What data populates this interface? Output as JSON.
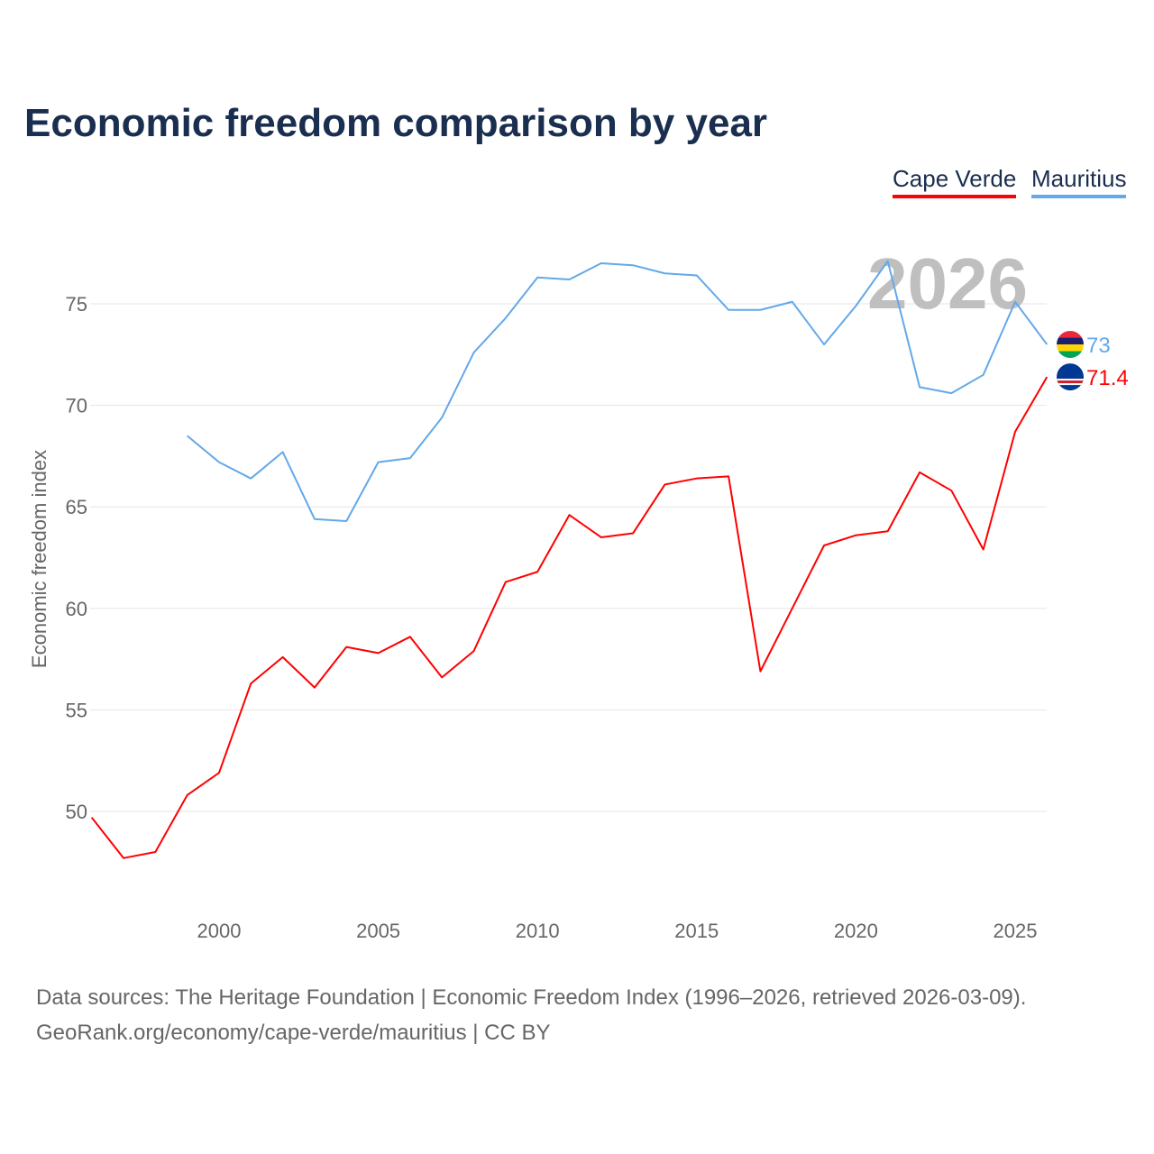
{
  "chart_data": {
    "type": "line",
    "title": "Economic freedom comparison by year",
    "xlabel": "",
    "ylabel": "Economic freedom index",
    "xlim": [
      1996,
      2026
    ],
    "ylim": [
      45,
      80
    ],
    "x_ticks": [
      "2000",
      "2005",
      "2010",
      "2015",
      "2020",
      "2025"
    ],
    "y_ticks": [
      "50",
      "55",
      "60",
      "65",
      "70",
      "75"
    ],
    "grid": true,
    "legend_placement": "top-right",
    "year_watermark": "2026",
    "series": [
      {
        "name": "Cape Verde",
        "color": "#ff0000",
        "end_label": "71.4",
        "flag": "cape-verde",
        "x": [
          1996,
          1997,
          1998,
          1999,
          2000,
          2001,
          2002,
          2003,
          2004,
          2005,
          2006,
          2007,
          2008,
          2009,
          2010,
          2011,
          2012,
          2013,
          2014,
          2015,
          2016,
          2017,
          2018,
          2019,
          2020,
          2021,
          2022,
          2023,
          2024,
          2025,
          2026
        ],
        "values": [
          49.7,
          47.7,
          48.0,
          50.8,
          51.9,
          56.3,
          57.6,
          56.1,
          58.1,
          57.8,
          58.6,
          56.6,
          57.9,
          61.3,
          61.8,
          64.6,
          63.5,
          63.7,
          66.1,
          66.4,
          66.5,
          56.9,
          60.0,
          63.1,
          63.6,
          63.8,
          66.7,
          65.8,
          62.9,
          68.7,
          71.4
        ]
      },
      {
        "name": "Mauritius",
        "color": "#63a8ea",
        "end_label": "73",
        "flag": "mauritius",
        "x": [
          1999,
          2000,
          2001,
          2002,
          2003,
          2004,
          2005,
          2006,
          2007,
          2008,
          2009,
          2010,
          2011,
          2012,
          2013,
          2014,
          2015,
          2016,
          2017,
          2018,
          2019,
          2020,
          2021,
          2022,
          2023,
          2024,
          2025,
          2026
        ],
        "values": [
          68.5,
          67.2,
          66.4,
          67.7,
          64.4,
          64.3,
          67.2,
          67.4,
          69.4,
          72.6,
          74.3,
          76.3,
          76.2,
          77.0,
          76.9,
          76.5,
          76.4,
          74.7,
          74.7,
          75.1,
          73.0,
          74.9,
          77.1,
          70.9,
          70.6,
          71.5,
          75.1,
          73.0
        ]
      }
    ]
  },
  "footer": {
    "line1": "Data sources: The Heritage Foundation | Economic Freedom Index (1996–2026, retrieved 2026-03-09).",
    "line2": "GeoRank.org/economy/cape-verde/mauritius | CC BY"
  }
}
